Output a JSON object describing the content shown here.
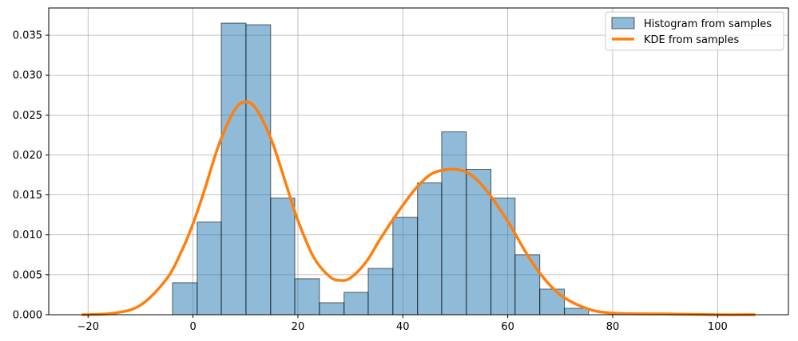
{
  "chart_data": {
    "type": "bar",
    "title": "",
    "xlabel": "",
    "ylabel": "",
    "xlim": [
      -27.5,
      113.5
    ],
    "ylim": [
      0,
      0.0384
    ],
    "grid": true,
    "legend_placement": "top-right",
    "x_ticks": [
      -20,
      0,
      20,
      40,
      60,
      80,
      100
    ],
    "x_tick_labels": [
      "−20",
      "0",
      "20",
      "40",
      "60",
      "80",
      "100"
    ],
    "y_ticks": [
      0,
      0.005,
      0.01,
      0.015,
      0.02,
      0.025,
      0.03,
      0.035
    ],
    "y_tick_labels": [
      "0.000",
      "0.005",
      "0.010",
      "0.015",
      "0.020",
      "0.025",
      "0.030",
      "0.035"
    ],
    "series": [
      {
        "name": "Histogram from samples",
        "kind": "histogram",
        "color": "#1f77b4",
        "bin_edges": [
          -3.9,
          0.8,
          5.4,
          10.1,
          14.8,
          19.4,
          24.1,
          28.8,
          33.4,
          38.1,
          42.8,
          47.4,
          52.1,
          56.8,
          61.4,
          66.1,
          70.8,
          75.4
        ],
        "values": [
          0.004,
          0.0116,
          0.0365,
          0.0363,
          0.0146,
          0.0045,
          0.0015,
          0.0028,
          0.0058,
          0.0122,
          0.0165,
          0.0229,
          0.0182,
          0.0146,
          0.0075,
          0.0032,
          0.0008
        ]
      },
      {
        "name": "KDE from samples",
        "kind": "line",
        "color": "#ff7f0e",
        "x": [
          -21,
          -15,
          -10,
          -5,
          -2,
          0,
          2,
          5,
          8,
          10,
          12,
          15,
          18,
          20,
          23,
          26,
          28,
          30,
          33,
          36,
          40,
          43,
          46,
          50,
          53,
          56,
          60,
          63,
          66,
          70,
          75,
          80,
          90,
          100,
          107
        ],
        "y": [
          0.0,
          0.0002,
          0.0012,
          0.0045,
          0.0082,
          0.0114,
          0.0152,
          0.0214,
          0.0257,
          0.0266,
          0.0258,
          0.0218,
          0.0158,
          0.0118,
          0.0072,
          0.0048,
          0.0043,
          0.0046,
          0.0066,
          0.0098,
          0.0137,
          0.0162,
          0.0178,
          0.0182,
          0.0175,
          0.0155,
          0.0117,
          0.0083,
          0.0053,
          0.0025,
          0.0008,
          0.0002,
          0.0001,
          0.0,
          0.0
        ]
      }
    ]
  }
}
